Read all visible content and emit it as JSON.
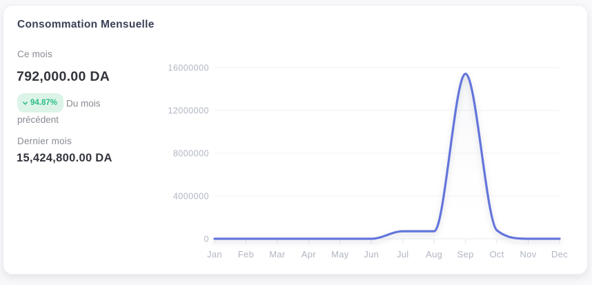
{
  "page": {
    "background": "#f8f8fa"
  },
  "card": {
    "title": "Consommation Mensuelle",
    "stats": {
      "current_label": "Ce mois",
      "current_value": "792,000.00 DA",
      "change_percent": "94.87%",
      "change_direction": "down",
      "change_caption": "Du mois précédent",
      "previous_label": "Dernier mois",
      "previous_value": "15,424,800.00 DA"
    }
  },
  "colors": {
    "line": "#6374db",
    "badge_bg": "#dcf4e8",
    "badge_text": "#2ebd85",
    "title_text": "#3b4056",
    "label_text": "#878b92",
    "value_text": "#33353d",
    "axis_text": "#b0b5c1",
    "gridline": "#f2f2f5",
    "axis_line": "#e8e9ee",
    "tick_mark": "#e3e4ea"
  },
  "chart_data": {
    "type": "area",
    "title": "Consommation Mensuelle",
    "categories": [
      "Jan",
      "Feb",
      "Mar",
      "Apr",
      "May",
      "Jun",
      "Jul",
      "Aug",
      "Sep",
      "Oct",
      "Nov",
      "Dec"
    ],
    "values": [
      0,
      0,
      0,
      0,
      0,
      0,
      700000,
      700000,
      15424800,
      792000,
      0,
      0
    ],
    "xlabel": "",
    "ylabel": "",
    "ylim": [
      0,
      16000000
    ],
    "yticks": [
      0,
      4000000,
      8000000,
      12000000,
      16000000
    ],
    "grid": true,
    "legend": false,
    "curve": "smooth-monotone"
  }
}
